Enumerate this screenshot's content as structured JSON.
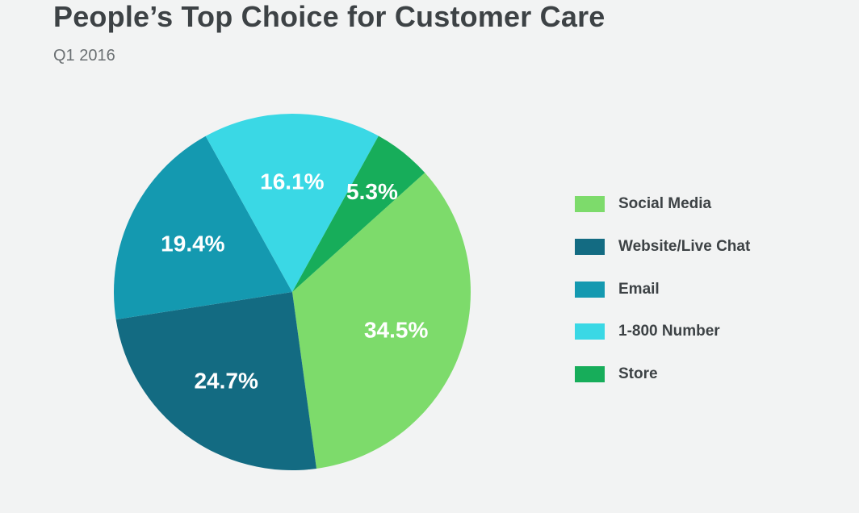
{
  "title": "People’s Top Choice for Customer Care",
  "subtitle": "Q1 2016",
  "chart_data": {
    "type": "pie",
    "title": "People’s Top Choice for Customer Care",
    "subtitle": "Q1 2016",
    "legend_position": "right",
    "slices": [
      {
        "name": "Social Media",
        "value": 34.5,
        "label": "34.5%",
        "color": "#7ddb6b"
      },
      {
        "name": "Website/Live Chat",
        "value": 24.7,
        "label": "24.7%",
        "color": "#136b82"
      },
      {
        "name": "Email",
        "value": 19.4,
        "label": "19.4%",
        "color": "#1499b0"
      },
      {
        "name": "1-800 Number",
        "value": 16.1,
        "label": "16.1%",
        "color": "#3ad8e5"
      },
      {
        "name": "Store",
        "value": 5.3,
        "label": "5.3%",
        "color": "#17ad5a"
      }
    ]
  }
}
